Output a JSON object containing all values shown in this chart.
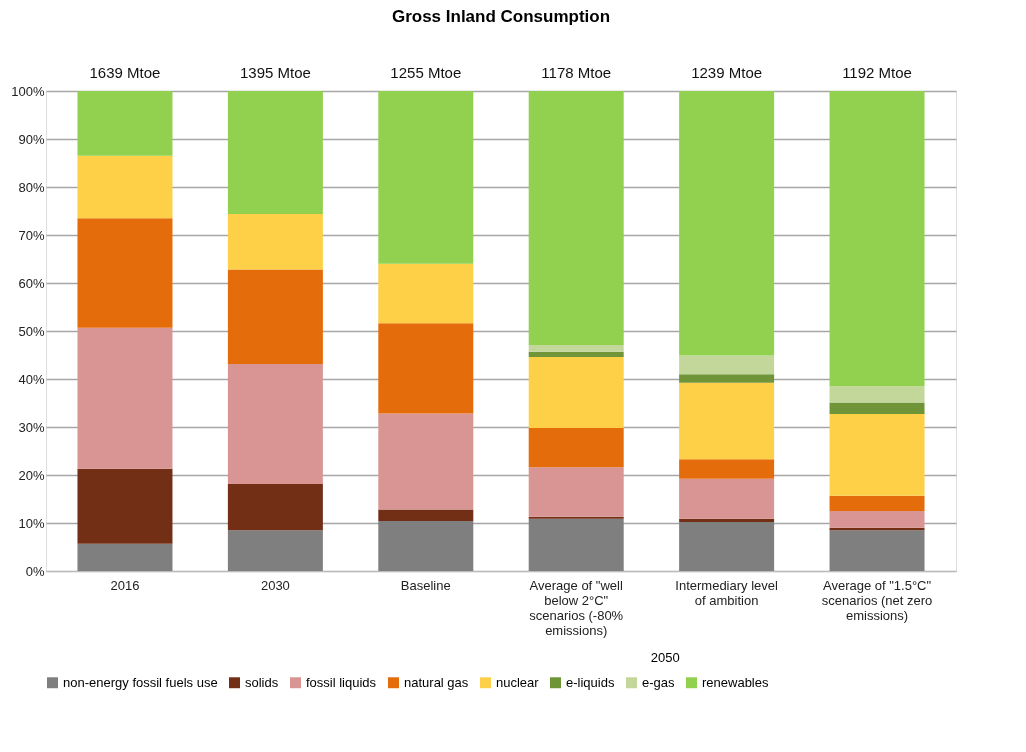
{
  "chart_data": {
    "type": "bar",
    "stacked": true,
    "title": "Gross Inland Consumption",
    "xlabel": "2050",
    "categories": [
      "2016",
      "2030",
      "Baseline",
      "Average of \"well below 2°C\" scenarios (-80% emissions)",
      "Intermediary level of ambition",
      "Average of \"1.5°C\" scenarios (net zero emissions)"
    ],
    "series": [
      {
        "name": "non-energy fossil fuels use",
        "color": "#7f7f7f",
        "values": [
          5.7,
          8.5,
          10.4,
          10.9,
          10.2,
          8.5
        ]
      },
      {
        "name": "solids",
        "color": "#722f15",
        "values": [
          15.6,
          9.6,
          2.4,
          0.4,
          0.7,
          0.5
        ]
      },
      {
        "name": "fossil liquids",
        "color": "#d99594",
        "values": [
          29.4,
          25.0,
          20.0,
          10.3,
          8.3,
          3.5
        ]
      },
      {
        "name": "natural gas",
        "color": "#e46c0a",
        "values": [
          22.8,
          19.7,
          18.8,
          8.2,
          4.1,
          3.2
        ]
      },
      {
        "name": "nuclear",
        "color": "#fdd048",
        "values": [
          13.0,
          11.6,
          12.4,
          14.8,
          15.9,
          17.0
        ]
      },
      {
        "name": "e-liquids",
        "color": "#6f9538",
        "values": [
          null,
          null,
          null,
          1.1,
          1.8,
          2.4
        ]
      },
      {
        "name": "e-gas",
        "color": "#c4d79b",
        "values": [
          null,
          null,
          null,
          1.4,
          3.9,
          3.4
        ]
      },
      {
        "name": "renewables",
        "color": "#92d050",
        "values": [
          13.5,
          25.6,
          36.0,
          52.9,
          55.1,
          61.5
        ]
      }
    ],
    "annotations": [
      "1639 Mtoe",
      "1395 Mtoe",
      "1255 Mtoe",
      "1178 Mtoe",
      "1239 Mtoe",
      "1192 Mtoe"
    ],
    "ylim": [
      0,
      100
    ],
    "yticks": [
      {
        "value": 0,
        "label": "0%"
      },
      {
        "value": 10,
        "label": "10%"
      },
      {
        "value": 20,
        "label": "20%"
      },
      {
        "value": 30,
        "label": "30%"
      },
      {
        "value": 40,
        "label": "40%"
      },
      {
        "value": 50,
        "label": "50%"
      },
      {
        "value": 60,
        "label": "60%"
      },
      {
        "value": 70,
        "label": "70%"
      },
      {
        "value": 80,
        "label": "80%"
      },
      {
        "value": 90,
        "label": "90%"
      },
      {
        "value": 100,
        "label": "100%"
      }
    ],
    "grid": "y",
    "legend": "bottom"
  }
}
